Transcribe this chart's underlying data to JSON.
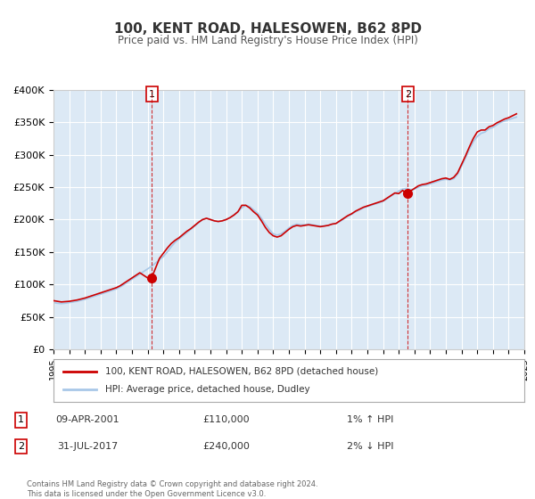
{
  "title": "100, KENT ROAD, HALESOWEN, B62 8PD",
  "subtitle": "Price paid vs. HM Land Registry's House Price Index (HPI)",
  "background_color": "#ffffff",
  "plot_bg_color": "#dce9f5",
  "grid_color": "#ffffff",
  "hpi_line_color": "#a8c8e8",
  "price_line_color": "#cc0000",
  "marker_color": "#cc0000",
  "vline_color": "#cc0000",
  "ylim": [
    0,
    400000
  ],
  "xlim_start": 1995.0,
  "xlim_end": 2025.0,
  "yticks": [
    0,
    50000,
    100000,
    150000,
    200000,
    250000,
    300000,
    350000,
    400000
  ],
  "ytick_labels": [
    "£0",
    "£50K",
    "£100K",
    "£150K",
    "£200K",
    "£250K",
    "£300K",
    "£350K",
    "£400K"
  ],
  "xticks": [
    1995,
    1996,
    1997,
    1998,
    1999,
    2000,
    2001,
    2002,
    2003,
    2004,
    2005,
    2006,
    2007,
    2008,
    2009,
    2010,
    2011,
    2012,
    2013,
    2014,
    2015,
    2016,
    2017,
    2018,
    2019,
    2020,
    2021,
    2022,
    2023,
    2024,
    2025
  ],
  "sale1_x": 2001.27,
  "sale1_y": 110000,
  "sale1_label": "1",
  "sale2_x": 2017.58,
  "sale2_y": 240000,
  "sale2_label": "2",
  "legend_line1": "100, KENT ROAD, HALESOWEN, B62 8PD (detached house)",
  "legend_line2": "HPI: Average price, detached house, Dudley",
  "annotation1_num": "1",
  "annotation1_date": "09-APR-2001",
  "annotation1_price": "£110,000",
  "annotation1_hpi": "1% ↑ HPI",
  "annotation2_num": "2",
  "annotation2_date": "31-JUL-2017",
  "annotation2_price": "£240,000",
  "annotation2_hpi": "2% ↓ HPI",
  "footer1": "Contains HM Land Registry data © Crown copyright and database right 2024.",
  "footer2": "This data is licensed under the Open Government Licence v3.0.",
  "hpi_data_x": [
    1995.0,
    1995.25,
    1995.5,
    1995.75,
    1996.0,
    1996.25,
    1996.5,
    1996.75,
    1997.0,
    1997.25,
    1997.5,
    1997.75,
    1998.0,
    1998.25,
    1998.5,
    1998.75,
    1999.0,
    1999.25,
    1999.5,
    1999.75,
    2000.0,
    2000.25,
    2000.5,
    2000.75,
    2001.0,
    2001.25,
    2001.5,
    2001.75,
    2002.0,
    2002.25,
    2002.5,
    2002.75,
    2003.0,
    2003.25,
    2003.5,
    2003.75,
    2004.0,
    2004.25,
    2004.5,
    2004.75,
    2005.0,
    2005.25,
    2005.5,
    2005.75,
    2006.0,
    2006.25,
    2006.5,
    2006.75,
    2007.0,
    2007.25,
    2007.5,
    2007.75,
    2008.0,
    2008.25,
    2008.5,
    2008.75,
    2009.0,
    2009.25,
    2009.5,
    2009.75,
    2010.0,
    2010.25,
    2010.5,
    2010.75,
    2011.0,
    2011.25,
    2011.5,
    2011.75,
    2012.0,
    2012.25,
    2012.5,
    2012.75,
    2013.0,
    2013.25,
    2013.5,
    2013.75,
    2014.0,
    2014.25,
    2014.5,
    2014.75,
    2015.0,
    2015.25,
    2015.5,
    2015.75,
    2016.0,
    2016.25,
    2016.5,
    2016.75,
    2017.0,
    2017.25,
    2017.5,
    2017.75,
    2018.0,
    2018.25,
    2018.5,
    2018.75,
    2019.0,
    2019.25,
    2019.5,
    2019.75,
    2020.0,
    2020.25,
    2020.5,
    2020.75,
    2021.0,
    2021.25,
    2021.5,
    2021.75,
    2022.0,
    2022.25,
    2022.5,
    2022.75,
    2023.0,
    2023.25,
    2023.5,
    2023.75,
    2024.0,
    2024.25,
    2024.5
  ],
  "hpi_data_y": [
    72000,
    71000,
    70500,
    71000,
    72000,
    73000,
    74000,
    75500,
    77000,
    79000,
    81000,
    83000,
    85000,
    87000,
    89000,
    91000,
    93000,
    96000,
    100000,
    104000,
    108000,
    112000,
    116000,
    120000,
    124000,
    128000,
    133000,
    138000,
    143000,
    150000,
    158000,
    165000,
    170000,
    175000,
    180000,
    185000,
    190000,
    195000,
    200000,
    202000,
    200000,
    198000,
    197000,
    198000,
    200000,
    203000,
    207000,
    212000,
    218000,
    222000,
    220000,
    215000,
    210000,
    202000,
    193000,
    185000,
    178000,
    176000,
    178000,
    182000,
    187000,
    191000,
    193000,
    192000,
    192000,
    193000,
    192000,
    191000,
    190000,
    190000,
    191000,
    193000,
    194000,
    197000,
    201000,
    205000,
    208000,
    212000,
    215000,
    218000,
    220000,
    222000,
    224000,
    226000,
    228000,
    232000,
    236000,
    240000,
    244000,
    247000,
    248000,
    246000,
    247000,
    250000,
    252000,
    253000,
    255000,
    257000,
    259000,
    261000,
    262000,
    261000,
    263000,
    270000,
    282000,
    295000,
    308000,
    320000,
    328000,
    333000,
    335000,
    340000,
    342000,
    346000,
    350000,
    352000,
    354000,
    356000,
    358000
  ],
  "price_data_x": [
    1995.0,
    1995.25,
    1995.5,
    1995.75,
    1996.0,
    1996.25,
    1996.5,
    1996.75,
    1997.0,
    1997.25,
    1997.5,
    1997.75,
    1998.0,
    1998.25,
    1998.5,
    1998.75,
    1999.0,
    1999.25,
    1999.5,
    1999.75,
    2000.0,
    2000.25,
    2000.5,
    2000.75,
    2001.0,
    2001.25,
    2001.5,
    2001.75,
    2002.0,
    2002.25,
    2002.5,
    2002.75,
    2003.0,
    2003.25,
    2003.5,
    2003.75,
    2004.0,
    2004.25,
    2004.5,
    2004.75,
    2005.0,
    2005.25,
    2005.5,
    2005.75,
    2006.0,
    2006.25,
    2006.5,
    2006.75,
    2007.0,
    2007.25,
    2007.5,
    2007.75,
    2008.0,
    2008.25,
    2008.5,
    2008.75,
    2009.0,
    2009.25,
    2009.5,
    2009.75,
    2010.0,
    2010.25,
    2010.5,
    2010.75,
    2011.0,
    2011.25,
    2011.5,
    2011.75,
    2012.0,
    2012.25,
    2012.5,
    2012.75,
    2013.0,
    2013.25,
    2013.5,
    2013.75,
    2014.0,
    2014.25,
    2014.5,
    2014.75,
    2015.0,
    2015.25,
    2015.5,
    2015.75,
    2016.0,
    2016.25,
    2016.5,
    2016.75,
    2017.0,
    2017.25,
    2017.5,
    2017.75,
    2018.0,
    2018.25,
    2018.5,
    2018.75,
    2019.0,
    2019.25,
    2019.5,
    2019.75,
    2020.0,
    2020.25,
    2020.5,
    2020.75,
    2021.0,
    2021.25,
    2021.5,
    2021.75,
    2022.0,
    2022.25,
    2022.5,
    2022.75,
    2023.0,
    2023.25,
    2023.5,
    2023.75,
    2024.0,
    2024.25,
    2024.5
  ],
  "price_data_y": [
    75000,
    74000,
    73000,
    73500,
    74000,
    75000,
    76000,
    77500,
    79000,
    81000,
    83000,
    85000,
    87000,
    89000,
    91000,
    93000,
    95000,
    98000,
    102000,
    106000,
    110000,
    114000,
    118000,
    114000,
    110000,
    110000,
    125000,
    140000,
    148000,
    156000,
    163000,
    168000,
    172000,
    177000,
    182000,
    186000,
    191000,
    196000,
    200000,
    202000,
    200000,
    198000,
    197000,
    198000,
    200000,
    203000,
    207000,
    212000,
    222000,
    222000,
    218000,
    212000,
    207000,
    198000,
    188000,
    180000,
    175000,
    173000,
    175000,
    180000,
    185000,
    189000,
    191000,
    190000,
    191000,
    192000,
    191000,
    190000,
    189000,
    190000,
    191000,
    193000,
    194000,
    198000,
    202000,
    206000,
    209000,
    213000,
    216000,
    219000,
    221000,
    223000,
    225000,
    227000,
    229000,
    233000,
    237000,
    241000,
    240000,
    245000,
    240000,
    244000,
    248000,
    252000,
    254000,
    255000,
    257000,
    259000,
    261000,
    263000,
    264000,
    262000,
    265000,
    272000,
    285000,
    298000,
    312000,
    325000,
    335000,
    338000,
    338000,
    343000,
    345000,
    349000,
    352000,
    355000,
    357000,
    360000,
    363000
  ]
}
